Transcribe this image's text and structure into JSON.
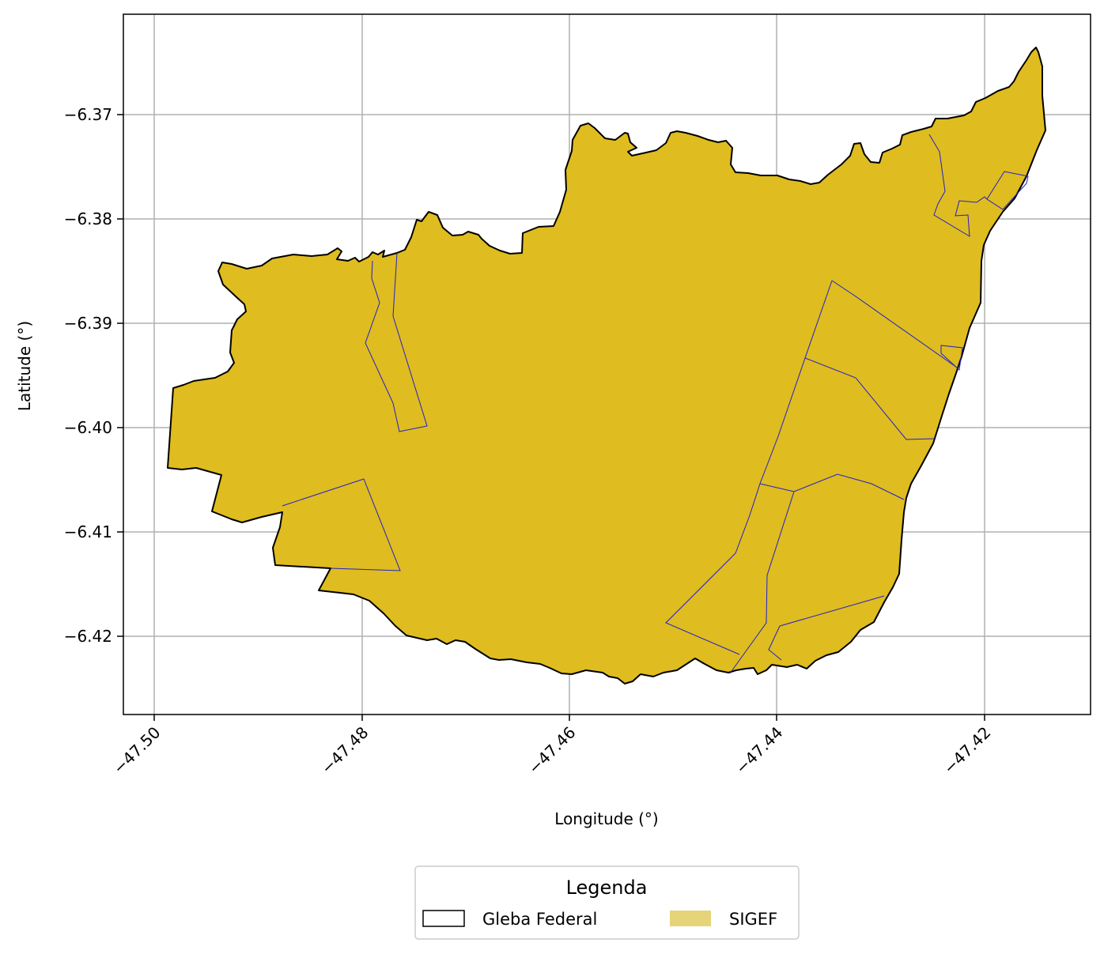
{
  "axes": {
    "xlabel": "Longitude (°)",
    "ylabel": "Latitude (°)",
    "x_ticks": [
      "−47.50",
      "−47.48",
      "−47.46",
      "−47.44",
      "−47.42"
    ],
    "y_ticks": [
      "−6.37",
      "−6.38",
      "−6.39",
      "−6.40",
      "−6.41",
      "−6.42"
    ],
    "grid": true
  },
  "legend": {
    "title": "Legenda",
    "placement": "below",
    "items": [
      {
        "label": "Gleba Federal",
        "style": "outline",
        "color": "#000000"
      },
      {
        "label": "SIGEF",
        "style": "fill",
        "color": "#e6d479"
      }
    ]
  },
  "colors": {
    "gleba_fill": "#dfbc1f",
    "gleba_edge": "#000000",
    "sigef_edge": "#2020cc",
    "grid": "#b0b0b0"
  }
}
